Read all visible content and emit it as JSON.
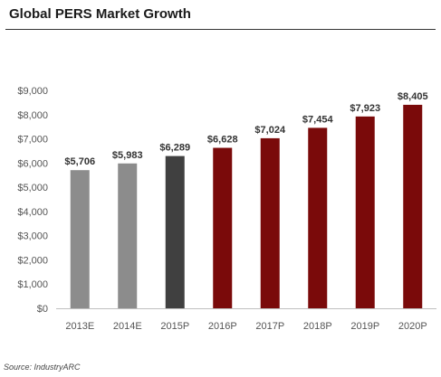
{
  "header": {
    "title": "Global PERS Market Growth"
  },
  "footer": {
    "source": "Source: IndustryARC"
  },
  "chart_data": {
    "type": "bar",
    "title": "Global PERS Market Growth",
    "xlabel": "",
    "ylabel": "",
    "categories": [
      "2013E",
      "2014E",
      "2015P",
      "2016P",
      "2017P",
      "2018P",
      "2019P",
      "2020P"
    ],
    "values": [
      5706,
      5983,
      6289,
      6628,
      7024,
      7454,
      7923,
      8405
    ],
    "data_labels": [
      "$5,706",
      "$5,983",
      "$6,289",
      "$6,628",
      "$7,024",
      "$7,454",
      "$7,923",
      "$8,405"
    ],
    "bar_colors": [
      "#8c8c8c",
      "#8c8c8c",
      "#404040",
      "#7a0a0a",
      "#7a0a0a",
      "#7a0a0a",
      "#7a0a0a",
      "#7a0a0a"
    ],
    "ylim": [
      0,
      9000
    ],
    "yticks": [
      0,
      1000,
      2000,
      3000,
      4000,
      5000,
      6000,
      7000,
      8000,
      9000
    ],
    "ytick_labels": [
      "$0",
      "$1,000",
      "$2,000",
      "$3,000",
      "$4,000",
      "$5,000",
      "$6,000",
      "$7,000",
      "$8,000",
      "$9,000"
    ],
    "grid": false,
    "legend": "none"
  }
}
